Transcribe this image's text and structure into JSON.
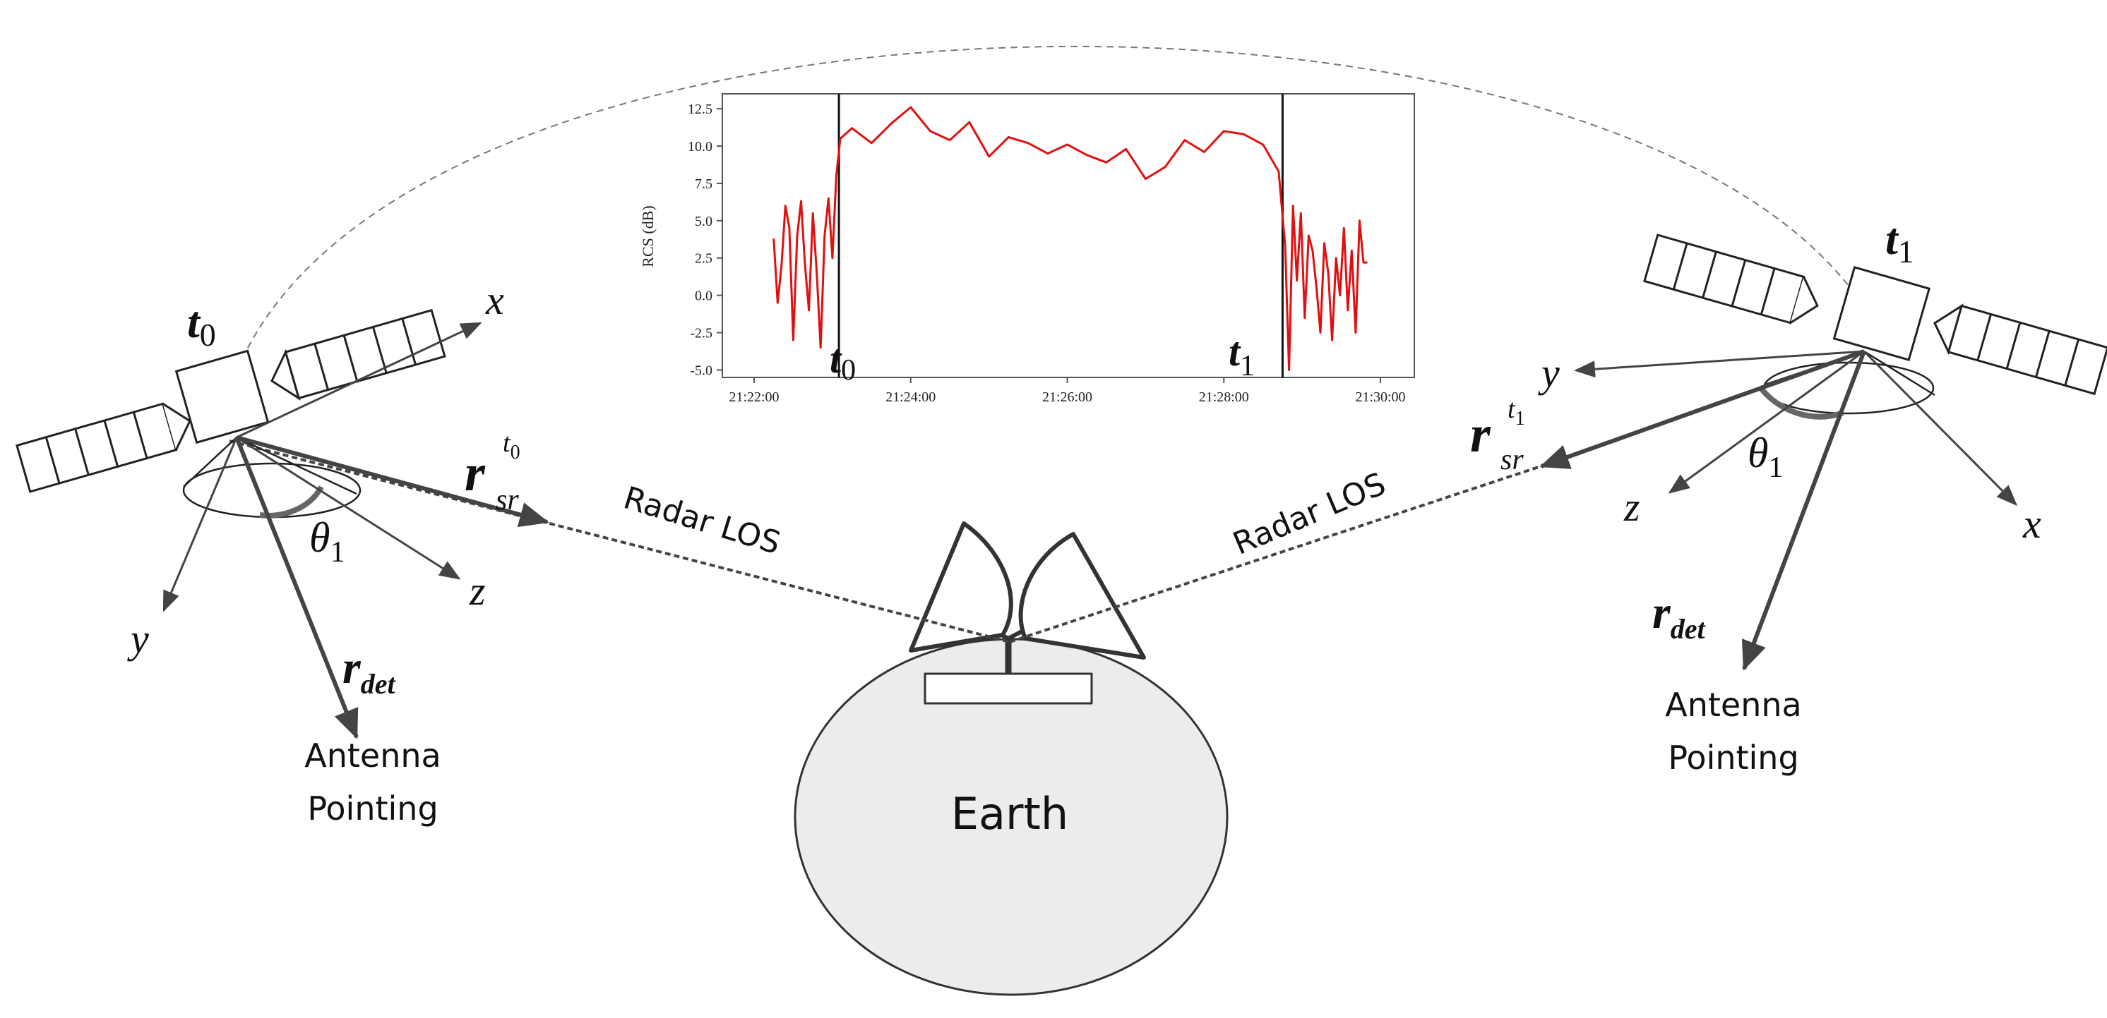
{
  "labels": {
    "earth": "Earth",
    "radar_los": "Radar LOS",
    "antenna_line1": "Antenna",
    "antenna_line2": "Pointing",
    "t": "t",
    "sub0": "0",
    "sub1": "1",
    "theta": "θ",
    "r": "r",
    "sr": "sr",
    "det": "det",
    "x": "x",
    "y": "y",
    "z": "z"
  },
  "colors": {
    "series": "#e01010",
    "ink": "#333333",
    "earth_fill": "#ececec"
  },
  "chart_data": {
    "type": "line",
    "ylabel": "RCS (dB)",
    "xlabel": "",
    "title": "",
    "ylim": [
      -5.5,
      13.5
    ],
    "xlim": [
      "21:22:00",
      "21:30:00"
    ],
    "yticks": [
      "-5.0",
      "-2.5",
      "0.0",
      "2.5",
      "5.0",
      "7.5",
      "10.0",
      "12.5"
    ],
    "xticks": [
      "21:22:00",
      "21:24:00",
      "21:26:00",
      "21:28:00",
      "21:30:00"
    ],
    "markers": [
      {
        "label": "t0",
        "time": "21:23:05"
      },
      {
        "label": "t1",
        "time": "21:28:45"
      }
    ],
    "series": [
      {
        "times": [
          "21:22:15",
          "21:22:18",
          "21:22:21",
          "21:22:24",
          "21:22:27",
          "21:22:30",
          "21:22:33",
          "21:22:36",
          "21:22:39",
          "21:22:42",
          "21:22:45",
          "21:22:48",
          "21:22:51",
          "21:22:54",
          "21:22:57",
          "21:23:00",
          "21:23:03",
          "21:23:06",
          "21:23:15",
          "21:23:30",
          "21:23:45",
          "21:24:00",
          "21:24:15",
          "21:24:30",
          "21:24:45",
          "21:25:00",
          "21:25:15",
          "21:25:30",
          "21:25:45",
          "21:26:00",
          "21:26:15",
          "21:26:30",
          "21:26:45",
          "21:27:00",
          "21:27:15",
          "21:27:30",
          "21:27:45",
          "21:28:00",
          "21:28:15",
          "21:28:30",
          "21:28:42",
          "21:28:47",
          "21:28:50",
          "21:28:53",
          "21:28:56",
          "21:28:59",
          "21:29:02",
          "21:29:05",
          "21:29:08",
          "21:29:11",
          "21:29:14",
          "21:29:17",
          "21:29:20",
          "21:29:23",
          "21:29:26",
          "21:29:29",
          "21:29:32",
          "21:29:35",
          "21:29:38",
          "21:29:41",
          "21:29:44",
          "21:29:47",
          "21:29:50"
        ],
        "values": [
          3.8,
          -0.5,
          2.0,
          6.0,
          4.5,
          -3.0,
          4.0,
          6.3,
          2.0,
          -1.0,
          5.5,
          1.5,
          -3.5,
          4.0,
          6.5,
          2.5,
          8.0,
          10.5,
          11.2,
          10.2,
          11.5,
          12.6,
          11.0,
          10.4,
          11.6,
          9.3,
          10.6,
          10.2,
          9.5,
          10.1,
          9.4,
          8.9,
          9.8,
          7.8,
          8.6,
          10.4,
          9.6,
          11.0,
          10.8,
          10.1,
          8.3,
          3.3,
          -5.0,
          6.0,
          1.0,
          5.5,
          -1.5,
          4.0,
          3.0,
          0.5,
          -2.5,
          3.5,
          1.5,
          -3.0,
          2.5,
          0.0,
          4.5,
          -1.0,
          3.0,
          -2.5,
          5.0,
          2.2,
          2.2
        ]
      }
    ]
  }
}
